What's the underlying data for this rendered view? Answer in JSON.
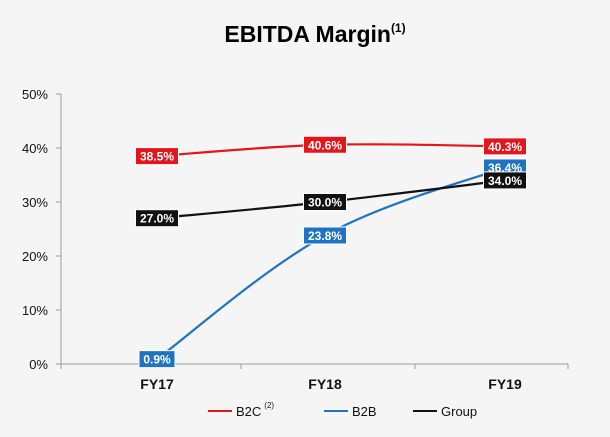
{
  "chart_data": {
    "type": "line",
    "title": "EBITDA Margin",
    "title_superscript": "(1)",
    "categories": [
      "FY17",
      "FY18",
      "FY19"
    ],
    "ylim": [
      0,
      50
    ],
    "yticks": [
      0,
      10,
      20,
      30,
      40,
      50
    ],
    "ytick_labels": [
      "0%",
      "10%",
      "20%",
      "30%",
      "40%",
      "50%"
    ],
    "grid": false,
    "legend_position": "bottom",
    "series": [
      {
        "name": "B2C",
        "name_superscript": "(2)",
        "color": "#e3161b",
        "values": [
          38.5,
          40.6,
          40.3
        ],
        "labels": [
          "38.5%",
          "40.6%",
          "40.3%"
        ]
      },
      {
        "name": "B2B",
        "color": "#1f74c2",
        "values": [
          0.9,
          23.8,
          36.4
        ],
        "labels": [
          "0.9%",
          "23.8%",
          "36.4%"
        ]
      },
      {
        "name": "Group",
        "color": "#111111",
        "values": [
          27.0,
          30.0,
          34.0
        ],
        "labels": [
          "27.0%",
          "30.0%",
          "34.0%"
        ]
      }
    ]
  }
}
